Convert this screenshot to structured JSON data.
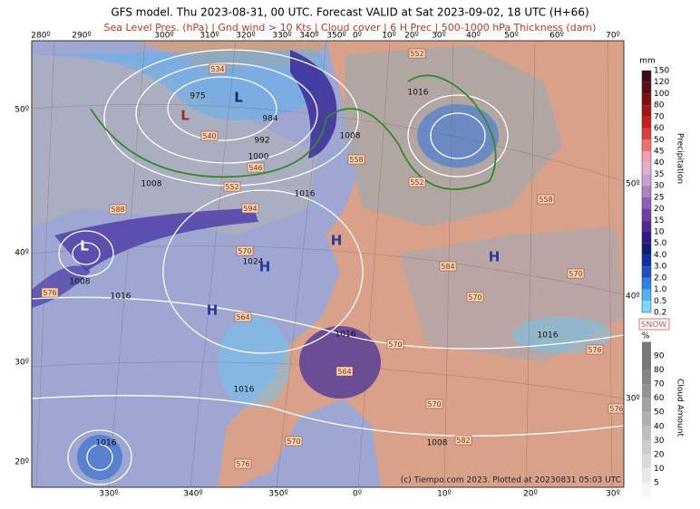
{
  "header": {
    "title": "GFS model. Thu 2023-08-31, 00 UTC. Forecast VALID at Sat 2023-09-02, 18 UTC (H+66)",
    "subtitle": "Sea Level Pres. (hPa) | Gnd wind > 10 Kts | Cloud cover | 6 H Prec | 500-1000 hPa Thickness (dam)"
  },
  "top_lon_labels": [
    "280º",
    "290º",
    "300º",
    "310º",
    "320º",
    "330º",
    "340º",
    "350º",
    "0º",
    "10º",
    "20º",
    "30º",
    "40º",
    "50º",
    "60º",
    "70º"
  ],
  "bottom_lon_labels": [
    "330º",
    "340º",
    "350º",
    "0º",
    "10º",
    "20º",
    "30º"
  ],
  "left_lat_labels": [
    "50º",
    "40º",
    "30º",
    "20º"
  ],
  "right_lat_labels": [
    "50º",
    "40º",
    "30º"
  ],
  "precip_legend": {
    "unit": "mm",
    "title": "Precipitation",
    "levels": [
      "150",
      "120",
      "100",
      "80",
      "70",
      "60",
      "50",
      "45",
      "40",
      "35",
      "30",
      "25",
      "20",
      "15",
      "10",
      "5.0",
      "4.0",
      "3.0",
      "2.0",
      "1.0",
      "0.5",
      "0.2"
    ]
  },
  "snow_label": "SNOW",
  "cloud_legend": {
    "unit": "%",
    "title": "Cloud Amount",
    "levels": [
      "90",
      "80",
      "70",
      "60",
      "50",
      "40",
      "30",
      "20",
      "10",
      "5"
    ]
  },
  "isobar_labels": [
    975,
    984,
    992,
    1000,
    1008,
    1008,
    1016,
    1016,
    1024,
    1008,
    1016,
    1016,
    1016,
    1016,
    1016,
    1008
  ],
  "thickness_labels": [
    534,
    540,
    546,
    552,
    552,
    552,
    558,
    558,
    588,
    594,
    570,
    576,
    564,
    584,
    570,
    570,
    570,
    576,
    570,
    576,
    582,
    570,
    576,
    564
  ],
  "pressure_centers": [
    "L",
    "L",
    "L",
    "H",
    "H",
    "H",
    "H"
  ],
  "credit": "(c) Tiempo.com 2023. Plotted at 20230831 05:03 UTC"
}
